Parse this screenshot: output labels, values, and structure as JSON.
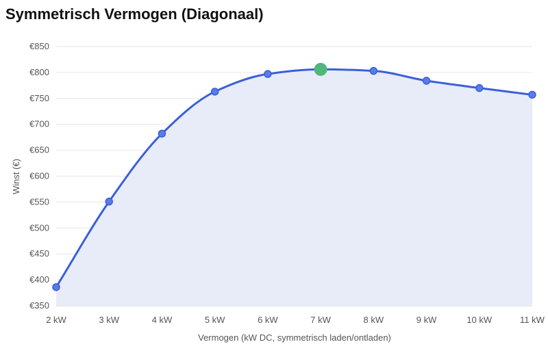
{
  "chart_data": {
    "type": "line",
    "title": "Symmetrisch Vermogen (Diagonaal)",
    "xlabel": "Vermogen (kW DC, symmetrisch laden/ontladen)",
    "ylabel": "Winst (€)",
    "categories": [
      "2 kW",
      "3 kW",
      "4 kW",
      "5 kW",
      "6 kW",
      "7 kW",
      "8 kW",
      "9 kW",
      "10 kW",
      "11 kW"
    ],
    "values": [
      386,
      551,
      682,
      763,
      797,
      806,
      803,
      784,
      770,
      757
    ],
    "highlight_index": 5,
    "ylim": [
      350,
      850
    ],
    "y_ticks": [
      350,
      400,
      450,
      500,
      550,
      600,
      650,
      700,
      750,
      800,
      850
    ],
    "y_tick_prefix": "€",
    "grid": true,
    "legend": "none",
    "colors": {
      "line": "#3a5fd9",
      "point": "#5b7be6",
      "fill": "#e8ecf9",
      "highlight": "#52b77a",
      "grid": "#e6e6e6"
    }
  }
}
